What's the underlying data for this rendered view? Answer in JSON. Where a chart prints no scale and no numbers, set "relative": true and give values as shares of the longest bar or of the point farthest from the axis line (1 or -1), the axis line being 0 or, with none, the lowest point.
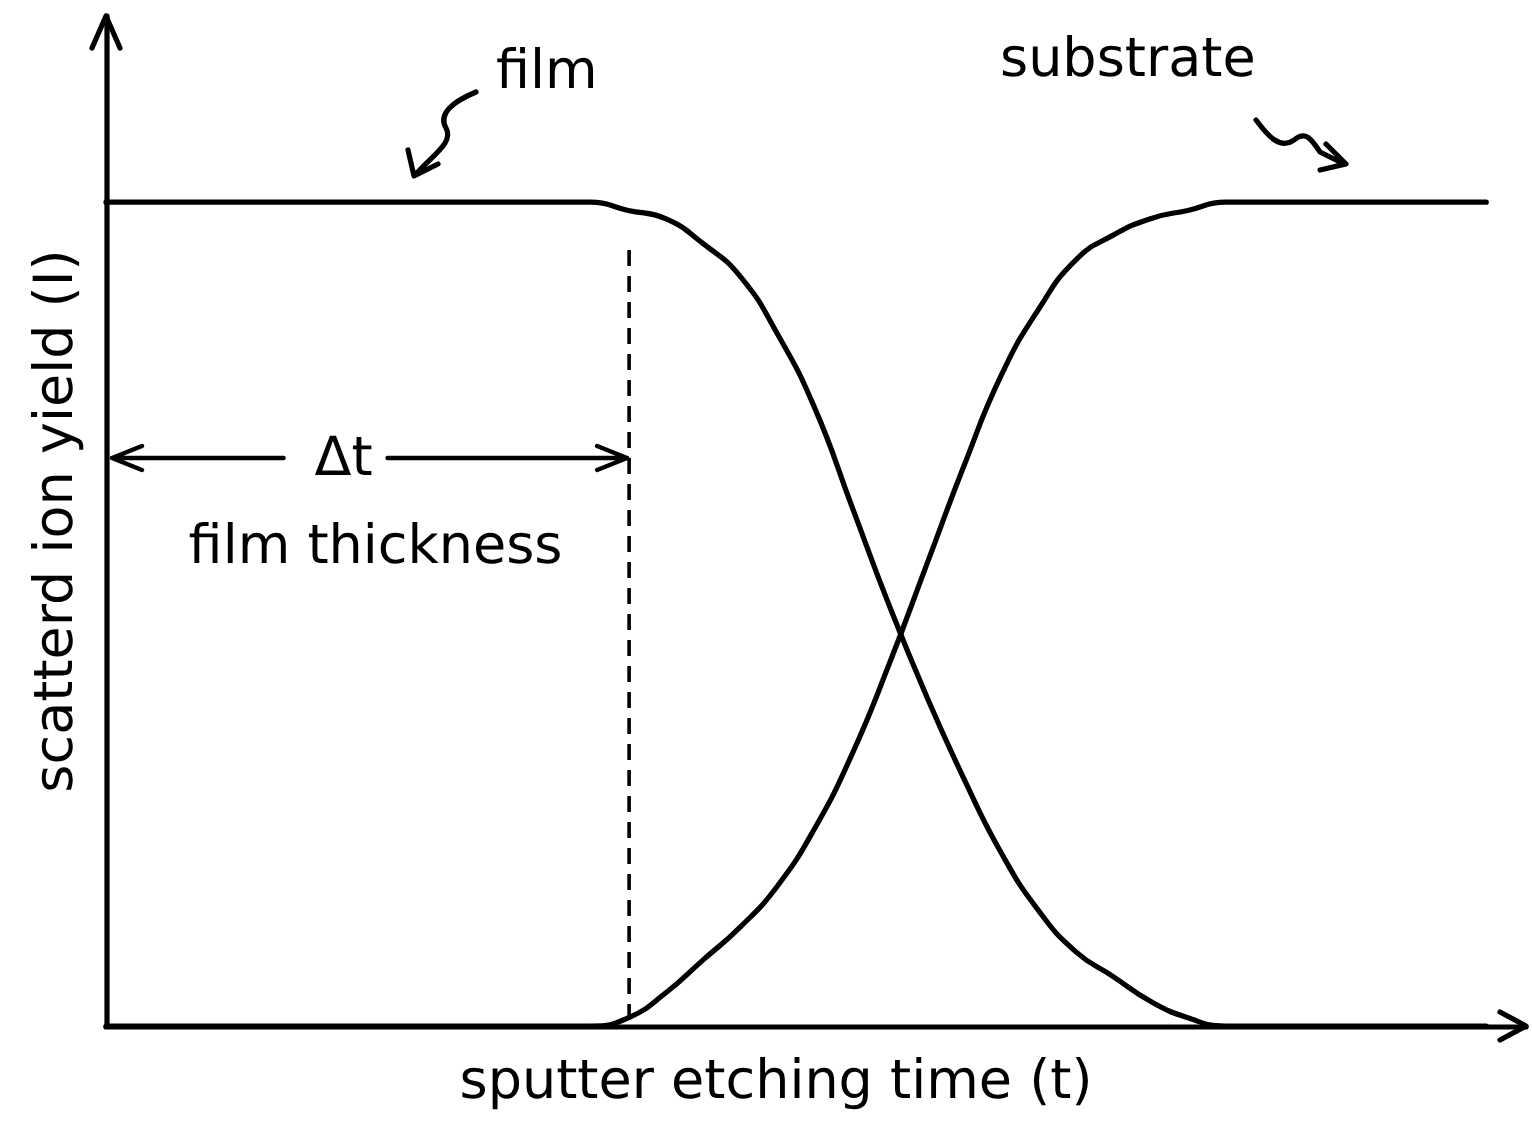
{
  "chart_data": {
    "type": "line",
    "xlabel": "sputter etching time (t)",
    "ylabel": "scatterd ion yield (I)",
    "relative": true,
    "categories": [
      null,
      null,
      null,
      null,
      null,
      null,
      null,
      null,
      null,
      null,
      null,
      null,
      null,
      null,
      null,
      null,
      null,
      null,
      null,
      null,
      null,
      null,
      null,
      null,
      null,
      null,
      null,
      null,
      null,
      null,
      null,
      null,
      null,
      null,
      null,
      null,
      null,
      null
    ],
    "series": [
      {
        "name": "film",
        "color": "#000000",
        "values": [
          1,
          1,
          1,
          1,
          1,
          1,
          1,
          1,
          1,
          1,
          1,
          1,
          1,
          1,
          0.99,
          0.98,
          0.95,
          0.91,
          0.84,
          0.75,
          0.63,
          0.51,
          0.4,
          0.3,
          0.21,
          0.14,
          0.09,
          0.06,
          0.03,
          0.01,
          0,
          0,
          0,
          0,
          0,
          0,
          0,
          0
        ]
      },
      {
        "name": "substrate",
        "color": "#000000",
        "values": [
          0,
          0,
          0,
          0,
          0,
          0,
          0,
          0,
          0,
          0,
          0,
          0,
          0,
          0,
          0.01,
          0.04,
          0.08,
          0.12,
          0.17,
          0.24,
          0.33,
          0.44,
          0.56,
          0.68,
          0.79,
          0.87,
          0.93,
          0.96,
          0.98,
          0.99,
          1,
          1,
          1,
          1,
          1,
          1,
          1,
          1
        ]
      }
    ],
    "annotations": [
      "Δt",
      "film thickness"
    ],
    "grid": false,
    "legend": false,
    "marker": "none"
  }
}
